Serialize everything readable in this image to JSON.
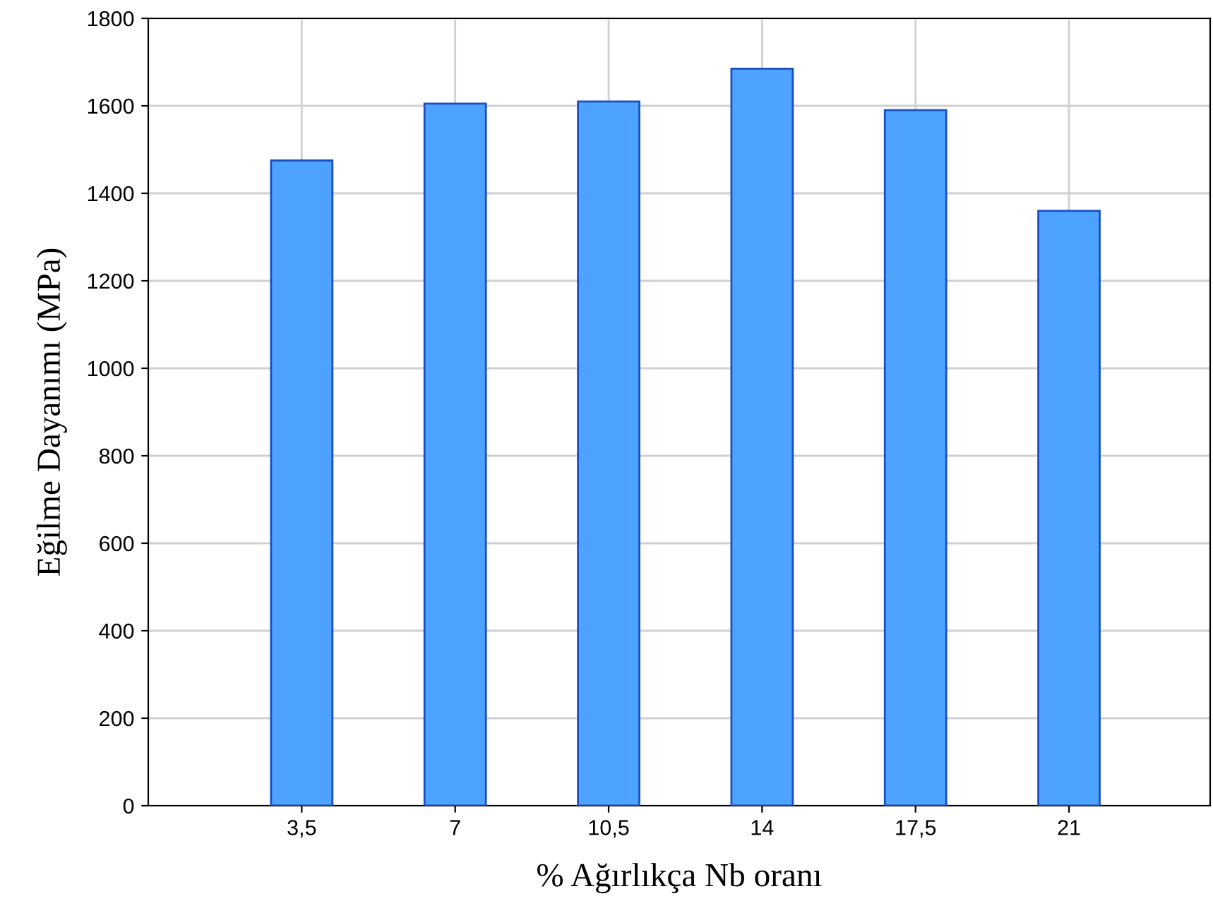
{
  "chart_data": {
    "type": "bar",
    "xlabel": "% Ağırlıkça Nb oranı",
    "ylabel": "Eğilme Dayanımı (MPa)",
    "categories": [
      "3,5",
      "7",
      "10,5",
      "14",
      "17,5",
      "21"
    ],
    "values": [
      1475,
      1605,
      1610,
      1685,
      1590,
      1360
    ],
    "color": "#4da3ff",
    "ylim": [
      0,
      1800
    ],
    "yticks": [
      0,
      200,
      400,
      600,
      800,
      1000,
      1200,
      1400,
      1600,
      1800
    ],
    "grid": true
  }
}
